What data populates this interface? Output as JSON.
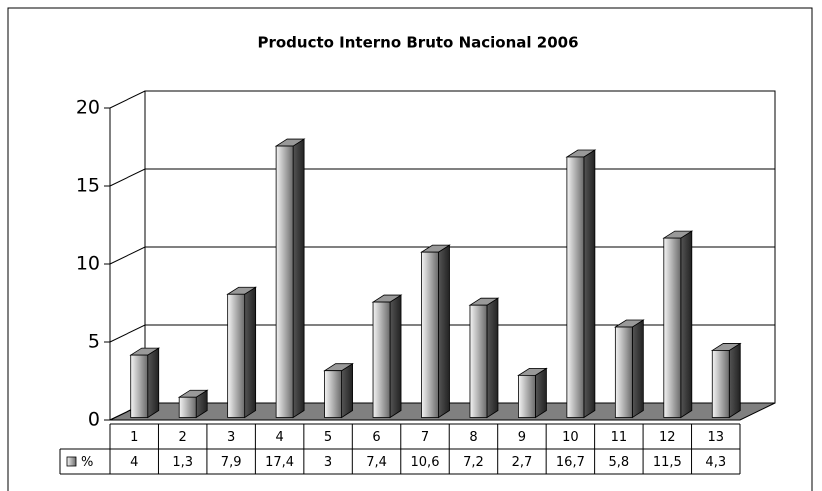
{
  "chart_data": {
    "type": "bar3d",
    "title": "Producto Interno Bruto Nacional 2006",
    "categories": [
      "1",
      "2",
      "3",
      "4",
      "5",
      "6",
      "7",
      "8",
      "9",
      "10",
      "11",
      "12",
      "13"
    ],
    "series": [
      {
        "name": "%",
        "color": "#808080",
        "values": [
          4,
          1.3,
          7.9,
          17.4,
          3,
          7.4,
          10.6,
          7.2,
          2.7,
          16.7,
          5.8,
          11.5,
          4.3
        ],
        "value_labels": [
          "4",
          "1,3",
          "7,9",
          "17,4",
          "3",
          "7,4",
          "10,6",
          "7,2",
          "2,7",
          "16,7",
          "5,8",
          "11,5",
          "4,3"
        ]
      }
    ],
    "ylim": [
      0,
      20
    ],
    "yticks": [
      0,
      5,
      10,
      15,
      20
    ],
    "grid": true
  }
}
